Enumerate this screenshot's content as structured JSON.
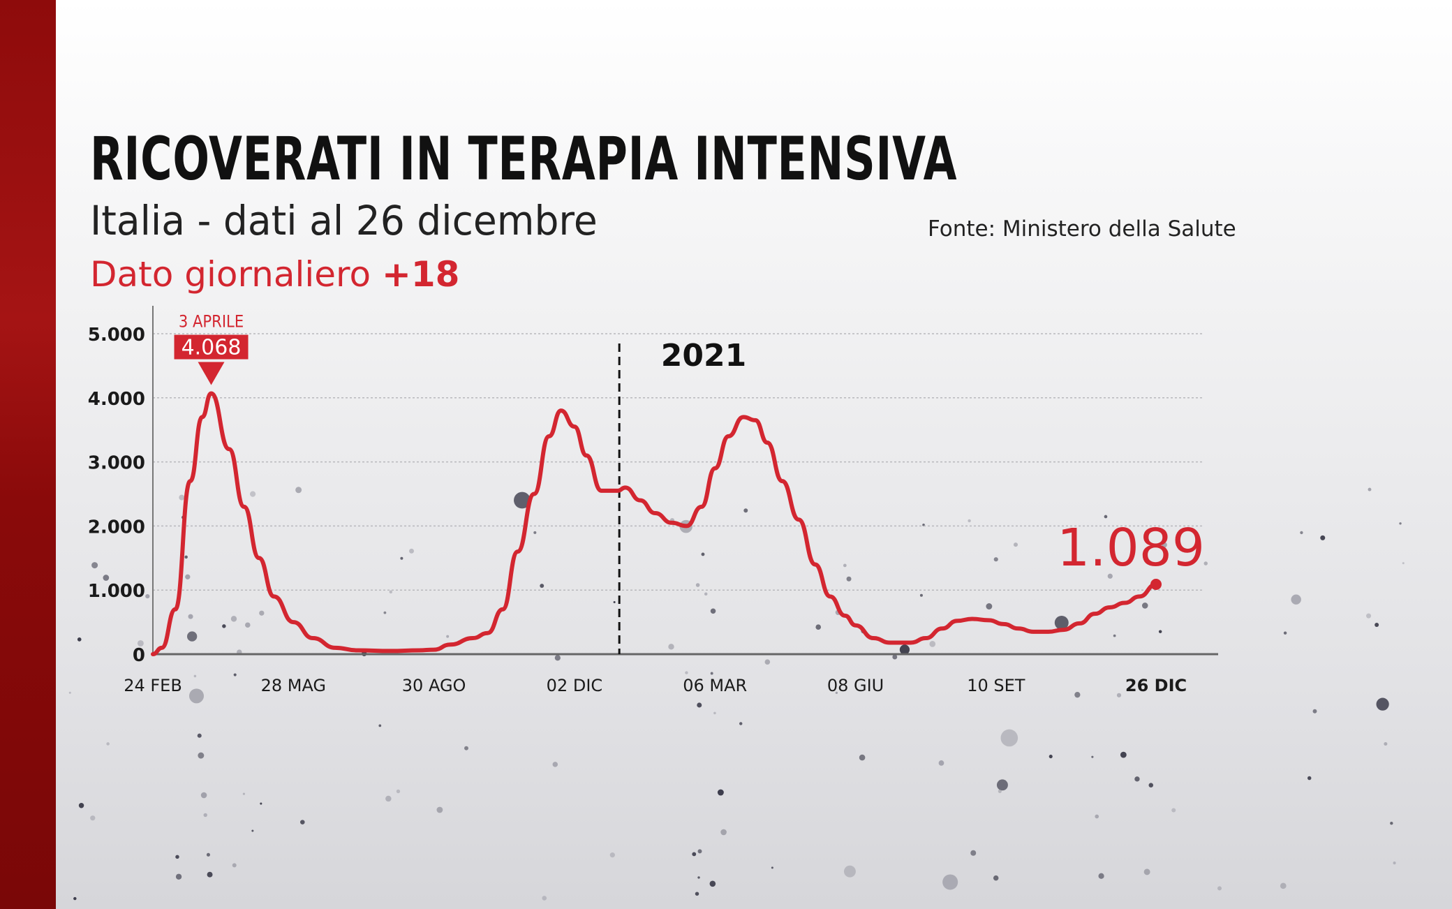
{
  "header": {
    "title": "RICOVERATI IN TERAPIA INTENSIVA",
    "subtitle": "Italia - dati al 26 dicembre",
    "daily_label": "Dato giornaliero",
    "daily_value": "+18",
    "source": "Fonte: Ministero della Salute"
  },
  "colors": {
    "line": "#d32630",
    "accent": "#d32630",
    "sidebar": "#9a0f0f"
  },
  "chart_data": {
    "type": "line",
    "title": "RICOVERATI IN TERAPIA INTENSIVA",
    "xlabel": "",
    "ylabel": "",
    "ylim": [
      0,
      5000
    ],
    "xlim": [
      "2020-02-24",
      "2021-12-26"
    ],
    "grid": true,
    "yticks": [
      {
        "value": 0,
        "label": "0"
      },
      {
        "value": 1000,
        "label": "1.000"
      },
      {
        "value": 2000,
        "label": "2.000"
      },
      {
        "value": 3000,
        "label": "3.000"
      },
      {
        "value": 4000,
        "label": "4.000"
      },
      {
        "value": 5000,
        "label": "5.000"
      }
    ],
    "xticks": [
      {
        "date": "2020-02-24",
        "label": "24 FEB"
      },
      {
        "date": "2020-05-28",
        "label": "28 MAG"
      },
      {
        "date": "2020-08-30",
        "label": "30 AGO"
      },
      {
        "date": "2020-12-02",
        "label": "02 DIC"
      },
      {
        "date": "2021-03-06",
        "label": "06 MAR"
      },
      {
        "date": "2021-06-08",
        "label": "08 GIU"
      },
      {
        "date": "2021-09-10",
        "label": "10 SET"
      },
      {
        "date": "2021-12-26",
        "label": "26 DIC"
      }
    ],
    "year_marker": {
      "date": "2021-01-01",
      "label": "2021"
    },
    "peak_annotation": {
      "date": "2020-04-03",
      "label": "3 APRILE",
      "value_label": "4.068",
      "value": 4068
    },
    "last_annotation": {
      "date": "2021-12-26",
      "value_label": "1.089",
      "value": 1089
    },
    "series": [
      {
        "points": [
          [
            "2020-02-24",
            0
          ],
          [
            "2020-03-01",
            100
          ],
          [
            "2020-03-10",
            700
          ],
          [
            "2020-03-20",
            2700
          ],
          [
            "2020-03-28",
            3700
          ],
          [
            "2020-04-03",
            4068
          ],
          [
            "2020-04-15",
            3200
          ],
          [
            "2020-04-25",
            2300
          ],
          [
            "2020-05-05",
            1500
          ],
          [
            "2020-05-15",
            900
          ],
          [
            "2020-05-28",
            500
          ],
          [
            "2020-06-10",
            250
          ],
          [
            "2020-06-25",
            100
          ],
          [
            "2020-07-10",
            60
          ],
          [
            "2020-08-01",
            50
          ],
          [
            "2020-08-20",
            60
          ],
          [
            "2020-08-30",
            70
          ],
          [
            "2020-09-10",
            150
          ],
          [
            "2020-09-25",
            250
          ],
          [
            "2020-10-05",
            330
          ],
          [
            "2020-10-15",
            700
          ],
          [
            "2020-10-25",
            1600
          ],
          [
            "2020-11-05",
            2500
          ],
          [
            "2020-11-15",
            3400
          ],
          [
            "2020-11-23",
            3800
          ],
          [
            "2020-12-02",
            3550
          ],
          [
            "2020-12-10",
            3100
          ],
          [
            "2020-12-20",
            2550
          ],
          [
            "2020-12-31",
            2550
          ],
          [
            "2021-01-05",
            2600
          ],
          [
            "2021-01-15",
            2400
          ],
          [
            "2021-01-25",
            2200
          ],
          [
            "2021-02-05",
            2050
          ],
          [
            "2021-02-15",
            2000
          ],
          [
            "2021-02-25",
            2300
          ],
          [
            "2021-03-06",
            2900
          ],
          [
            "2021-03-15",
            3400
          ],
          [
            "2021-03-25",
            3700
          ],
          [
            "2021-04-02",
            3650
          ],
          [
            "2021-04-10",
            3300
          ],
          [
            "2021-04-20",
            2700
          ],
          [
            "2021-05-01",
            2100
          ],
          [
            "2021-05-12",
            1400
          ],
          [
            "2021-05-22",
            900
          ],
          [
            "2021-06-01",
            600
          ],
          [
            "2021-06-08",
            450
          ],
          [
            "2021-06-20",
            250
          ],
          [
            "2021-07-01",
            180
          ],
          [
            "2021-07-15",
            180
          ],
          [
            "2021-07-25",
            250
          ],
          [
            "2021-08-05",
            400
          ],
          [
            "2021-08-15",
            520
          ],
          [
            "2021-08-25",
            550
          ],
          [
            "2021-09-05",
            530
          ],
          [
            "2021-09-15",
            470
          ],
          [
            "2021-09-25",
            400
          ],
          [
            "2021-10-05",
            350
          ],
          [
            "2021-10-15",
            350
          ],
          [
            "2021-10-25",
            380
          ],
          [
            "2021-11-05",
            480
          ],
          [
            "2021-11-15",
            630
          ],
          [
            "2021-11-25",
            730
          ],
          [
            "2021-12-05",
            800
          ],
          [
            "2021-12-15",
            900
          ],
          [
            "2021-12-26",
            1089
          ]
        ]
      }
    ]
  }
}
